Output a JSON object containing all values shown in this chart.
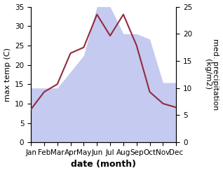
{
  "months": [
    "Jan",
    "Feb",
    "Mar",
    "Apr",
    "May",
    "Jun",
    "Jul",
    "Aug",
    "Sep",
    "Oct",
    "Nov",
    "Dec"
  ],
  "temperature": [
    8.5,
    13.0,
    15.0,
    23.0,
    24.5,
    33.0,
    27.5,
    33.0,
    25.0,
    13.0,
    10.0,
    9.0
  ],
  "precipitation": [
    10,
    10,
    10,
    13,
    16,
    25,
    25,
    20,
    20,
    19,
    11,
    11
  ],
  "temp_color": "#922B3E",
  "precip_color_fill": "#c5caf0",
  "temp_ylim": [
    0,
    35
  ],
  "precip_ylim": [
    0,
    25
  ],
  "temp_yticks": [
    0,
    5,
    10,
    15,
    20,
    25,
    30,
    35
  ],
  "precip_yticks": [
    0,
    5,
    10,
    15,
    20,
    25
  ],
  "xlabel": "date (month)",
  "ylabel_left": "max temp (C)",
  "ylabel_right": "med. precipitation\n(kg/m2)",
  "label_fontsize": 8,
  "tick_fontsize": 7.5
}
